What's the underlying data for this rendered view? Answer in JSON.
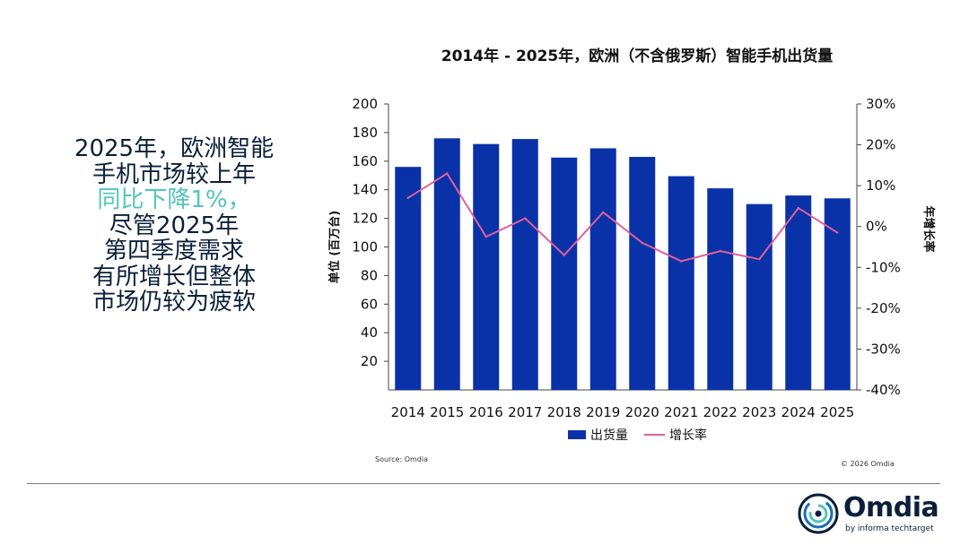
{
  "headline": {
    "line1": "2025年，欧洲智能",
    "line2": "手机市场较上年",
    "line3_highlight": "同比下降1%，",
    "line4": "尽管2025年",
    "line5": "第四季度需求",
    "line6": "有所增长但整体",
    "line7": "市场仍较为疲软"
  },
  "footer": {
    "source": "Source: Omdia",
    "copyright": "© 2026 Omdia",
    "brand": "Omdia",
    "tagline": "by informa techtarget"
  },
  "colors": {
    "bar": "#0a32a8",
    "line": "#e0609a",
    "headline_text": "#0b1f3a",
    "headline_highlight": "#52c5b8"
  },
  "chart_data": {
    "type": "bar",
    "title": "2014年 - 2025年，欧洲（不含俄罗斯）智能手机出货量",
    "categories": [
      "2014",
      "2015",
      "2016",
      "2017",
      "2018",
      "2019",
      "2020",
      "2021",
      "2022",
      "2023",
      "2024",
      "2025"
    ],
    "series": [
      {
        "name": "出货量",
        "type": "bar",
        "axis": "left",
        "values": [
          156,
          176,
          172,
          175.5,
          162.5,
          169,
          163,
          149.5,
          141,
          130,
          136,
          134
        ]
      },
      {
        "name": "增长率",
        "type": "line",
        "axis": "right",
        "values": [
          7,
          13,
          -2.5,
          2,
          -7,
          3.5,
          -4,
          -8.5,
          -6,
          -8,
          4.5,
          -1.5
        ]
      }
    ],
    "ylabel": "单位 (百万台)",
    "y2label": "年增长率",
    "ylim": [
      0,
      200
    ],
    "yticks": [
      20,
      40,
      60,
      80,
      100,
      120,
      140,
      160,
      180,
      200
    ],
    "y2lim": [
      -40,
      30
    ],
    "y2ticks": [
      "30%",
      "20%",
      "10%",
      "0%",
      "-10%",
      "-20%",
      "-30%",
      "-40%"
    ],
    "legend_position": "bottom"
  }
}
